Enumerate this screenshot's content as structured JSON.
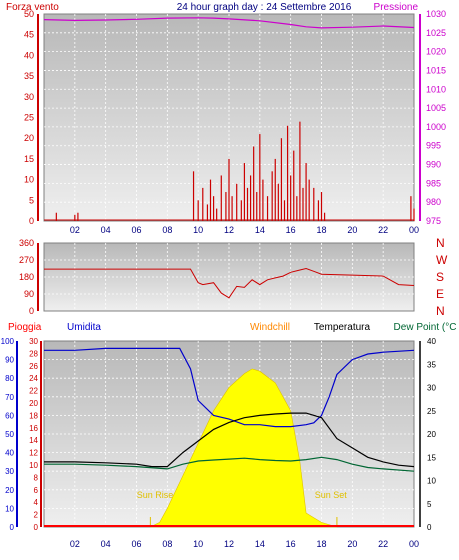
{
  "header": {
    "left": "Forza vento",
    "title": "24 hour graph day : 24 Settembre 2016",
    "right": "Pressione"
  },
  "colors": {
    "wind": "#cc0000",
    "pressure": "#cc00cc",
    "direction": "#cc0000",
    "humidity": "#0000cc",
    "temperature": "#000000",
    "dewpoint": "#006633",
    "solar": "#ffff00",
    "rain": "#ff0000",
    "windchill": "#ff8800",
    "grid": "#ffffff",
    "background": "#d8d8d8"
  },
  "chart_data": [
    {
      "type": "bar",
      "name": "wind-pressure",
      "yleft_ticks": [
        0,
        5,
        10,
        15,
        20,
        25,
        30,
        35,
        40,
        45,
        50
      ],
      "ylim_left": [
        0,
        50
      ],
      "yright_ticks": [
        975,
        980,
        985,
        990,
        995,
        1000,
        1005,
        1010,
        1015,
        1020,
        1025,
        1030
      ],
      "ylim_right": [
        975,
        1030
      ],
      "xticks": [
        "02",
        "04",
        "06",
        "08",
        "10",
        "12",
        "14",
        "16",
        "18",
        "20",
        "22",
        "00"
      ],
      "pressure": {
        "x": [
          0,
          2,
          4,
          6,
          8,
          10,
          11,
          12,
          14,
          16,
          17,
          18,
          20,
          22,
          24
        ],
        "y": [
          1028.5,
          1028.3,
          1028.4,
          1028.6,
          1028.9,
          1029.0,
          1028.9,
          1028.7,
          1028.2,
          1027.2,
          1026.6,
          1026.3,
          1026.5,
          1026.8,
          1026.4
        ]
      },
      "wind": {
        "x": [
          0.8,
          2.0,
          2.2,
          9.7,
          10.0,
          10.3,
          10.6,
          10.8,
          11.0,
          11.2,
          11.5,
          11.8,
          12.0,
          12.2,
          12.5,
          12.8,
          13.0,
          13.2,
          13.4,
          13.6,
          13.8,
          14.0,
          14.2,
          14.5,
          14.8,
          15.0,
          15.2,
          15.4,
          15.6,
          15.8,
          16.0,
          16.2,
          16.4,
          16.6,
          16.8,
          17.0,
          17.2,
          17.5,
          17.8,
          18.0,
          18.2,
          23.8,
          24.0
        ],
        "y": [
          2,
          1.5,
          2,
          12,
          5,
          8,
          4,
          10,
          6,
          3,
          11,
          7,
          15,
          6,
          9,
          5,
          14,
          8,
          11,
          18,
          7,
          21,
          10,
          6,
          12,
          15,
          9,
          20,
          5,
          23,
          11,
          17,
          6,
          24,
          8,
          14,
          10,
          8,
          5,
          7,
          2,
          6,
          3
        ]
      }
    },
    {
      "type": "line",
      "name": "wind-direction",
      "yleft_ticks": [
        0,
        90,
        180,
        270,
        360
      ],
      "ylim_left": [
        0,
        360
      ],
      "yright_labels": [
        "N",
        "W",
        "S",
        "E",
        "N"
      ],
      "x": [
        0,
        2,
        4,
        6,
        8,
        9.5,
        10,
        10.3,
        11,
        11.5,
        12,
        12.5,
        13,
        13.5,
        14,
        14.5,
        15,
        15.5,
        16,
        16.5,
        17,
        17.5,
        18,
        20,
        22,
        23,
        24
      ],
      "y": [
        222,
        222,
        222,
        222,
        222,
        222,
        150,
        140,
        150,
        95,
        70,
        130,
        125,
        165,
        140,
        165,
        175,
        185,
        205,
        215,
        225,
        210,
        195,
        190,
        185,
        140,
        135
      ]
    },
    {
      "type": "line",
      "name": "humidity-temperature",
      "legend": [
        "Pioggia",
        "Umidita",
        "Windchill",
        "Temperatura",
        "Dew Point (°C"
      ],
      "yleft1_ticks": [
        0,
        10,
        20,
        30,
        40,
        50,
        60,
        70,
        80,
        90,
        100
      ],
      "yleft1_lim": [
        0,
        100
      ],
      "yleft2_ticks": [
        0,
        2,
        4,
        6,
        8,
        10,
        12,
        14,
        16,
        18,
        20,
        22,
        24,
        26,
        28,
        30
      ],
      "yleft2_lim": [
        0,
        30
      ],
      "yright_ticks": [
        0,
        5,
        10,
        15,
        20,
        25,
        30,
        35,
        40
      ],
      "yright_lim": [
        0,
        40
      ],
      "xticks": [
        "02",
        "04",
        "06",
        "08",
        "10",
        "12",
        "14",
        "16",
        "18",
        "20",
        "22",
        "00"
      ],
      "humidity": {
        "x": [
          0,
          2,
          4,
          6,
          8,
          8.8,
          9.5,
          10,
          11,
          12,
          13,
          14,
          15,
          16,
          17,
          17.5,
          18,
          18.5,
          19,
          20,
          21,
          22,
          24
        ],
        "y": [
          95,
          95,
          96,
          96,
          96,
          96,
          85,
          68,
          60,
          58,
          55,
          55,
          54,
          54,
          55,
          56,
          60,
          70,
          82,
          90,
          93,
          94,
          95
        ]
      },
      "temperature": {
        "x": [
          0,
          2,
          4,
          6,
          7,
          8,
          9,
          10,
          11,
          12,
          13,
          14,
          15,
          16,
          17,
          18,
          19,
          20,
          21,
          22,
          23,
          24
        ],
        "y": [
          14.0,
          14.0,
          13.8,
          13.5,
          13.0,
          13.0,
          16,
          18.5,
          21,
          22.5,
          23.5,
          24.0,
          24.3,
          24.5,
          24.5,
          23.5,
          19,
          17,
          15,
          14,
          13.3,
          13.0
        ]
      },
      "dewpoint": {
        "x": [
          0,
          2,
          4,
          6,
          8,
          9,
          10,
          11,
          12,
          13,
          14,
          15,
          16,
          17,
          18,
          19,
          20,
          21,
          22,
          24
        ],
        "y": [
          13.5,
          13.5,
          13.3,
          13.0,
          12.5,
          13.5,
          14.2,
          14.4,
          14.6,
          14.8,
          14.5,
          14.3,
          14.2,
          14.5,
          15.0,
          14.5,
          13.5,
          12.8,
          12.5,
          12.0
        ]
      },
      "solar": {
        "x": [
          6.9,
          7.5,
          8,
          9,
          10,
          11,
          12,
          13,
          13.5,
          14,
          15,
          16,
          16.6,
          17,
          17.5,
          18,
          19
        ],
        "y": [
          0,
          1,
          4,
          11,
          18,
          25,
          30,
          33,
          34,
          33.5,
          31,
          25,
          14,
          3,
          2,
          1,
          0
        ]
      },
      "annotations": [
        "Sun Rise",
        "Sun Set"
      ]
    }
  ]
}
